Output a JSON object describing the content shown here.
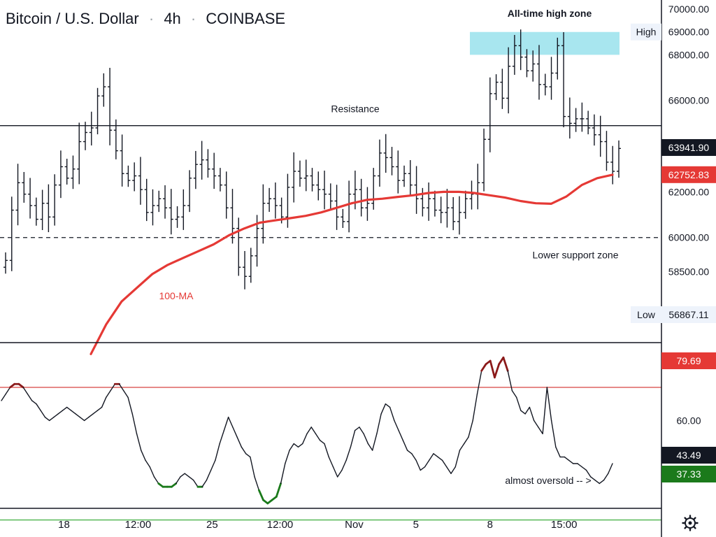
{
  "header": {
    "pair": "Bitcoin / U.S. Dollar",
    "interval": "4h",
    "exchange": "COINBASE",
    "separator": "·"
  },
  "chart_data": [
    {
      "type": "line",
      "title": "Bitcoin / U.S. Dollar · 4h · COINBASE",
      "ylim": [
        55400,
        70400
      ],
      "y_ticks": [
        "70000.00",
        "69000.00",
        "68000.00",
        "66000.00",
        "62000.00",
        "60000.00",
        "58500.00"
      ],
      "y_tick_values": [
        70000,
        69000,
        68000,
        66000,
        62000,
        60000,
        58500
      ],
      "x_labels": [
        "18",
        "12:00",
        "25",
        "12:00",
        "Nov",
        "5",
        "8",
        "15:00"
      ],
      "x_label_positions": [
        0.09,
        0.21,
        0.33,
        0.44,
        0.56,
        0.66,
        0.78,
        0.9
      ],
      "price_series": [
        59000,
        61200,
        62400,
        61900,
        61400,
        60800,
        61500,
        60900,
        62300,
        63100,
        62600,
        63000,
        64200,
        64600,
        64800,
        66200,
        66600,
        64700,
        63800,
        62800,
        62500,
        62700,
        62100,
        61100,
        61400,
        61700,
        61300,
        60800,
        60900,
        61400,
        62600,
        63200,
        63400,
        63000,
        62700,
        62300,
        61300,
        60400,
        58700,
        58300,
        59200,
        60400,
        61500,
        61700,
        61400,
        60900,
        62200,
        62900,
        62600,
        62700,
        62300,
        62100,
        61900,
        61600,
        60900,
        60700,
        61900,
        62100,
        61300,
        61500,
        62700,
        63700,
        63500,
        63100,
        62500,
        62800,
        62300,
        61700,
        61300,
        61700,
        61200,
        61100,
        61300,
        60700,
        61100,
        61700,
        61900,
        62400,
        64300,
        66300,
        66800,
        66100,
        67500,
        68400,
        67900,
        67300,
        67600,
        66700,
        66600,
        67200,
        68400,
        65300,
        65000,
        65200,
        65200,
        64800,
        64500,
        64200,
        63300,
        62900,
        63900
      ],
      "ma_series": [
        54900,
        56200,
        57200,
        57800,
        58400,
        58800,
        59100,
        59400,
        59700,
        60100,
        60400,
        60650,
        60750,
        60850,
        60950,
        61100,
        61300,
        61500,
        61650,
        61700,
        61780,
        61850,
        61950,
        62000,
        62000,
        61950,
        61850,
        61750,
        61600,
        61500,
        61480,
        61800,
        62300,
        62600,
        62750
      ],
      "horizontal_levels": {
        "resistance": 64900,
        "lower_support": 60000,
        "ath_zone_low": 68000,
        "ath_zone_high": 69000
      },
      "labels": {
        "ath_zone": "All-time high zone",
        "resistance": "Resistance",
        "lower_support": "Lower support zone",
        "ma": "100-MA"
      },
      "badges": {
        "high_label": "High",
        "high_value": "69000.00",
        "last_price": "63941.90",
        "ma_value": "62752.83",
        "low_label": "Low",
        "low_value": "56867.11"
      },
      "colors": {
        "ma": "#e53935",
        "ath_zone": "#a8e6ef",
        "badge_dark": "#131722",
        "badge_red": "#e53935",
        "badge_light": "#eef3fb"
      }
    },
    {
      "type": "line",
      "title": "",
      "ylim": [
        33.5,
        83.5
      ],
      "y_ticks": [
        "60.00"
      ],
      "y_tick_values": [
        60
      ],
      "levels": {
        "overbought": 70,
        "oversold": 30
      },
      "series": [
        66,
        68,
        70,
        71,
        71,
        70,
        68,
        66,
        65,
        63,
        61,
        60,
        61,
        62,
        63,
        64,
        63,
        62,
        61,
        60,
        61,
        62,
        63,
        64,
        67,
        69,
        71,
        71,
        69,
        67,
        62,
        56,
        51,
        48,
        46,
        43,
        41,
        40,
        40,
        40,
        41,
        43,
        44,
        43,
        42,
        40,
        40,
        42,
        45,
        48,
        53,
        57,
        61,
        58,
        55,
        52,
        50,
        49,
        43,
        39,
        36,
        35,
        36,
        37,
        41,
        47,
        51,
        53,
        52,
        53,
        56,
        58,
        56,
        54,
        53,
        49,
        46,
        43,
        45,
        48,
        52,
        57,
        58,
        56,
        53,
        51,
        56,
        62,
        65,
        64,
        60,
        57,
        54,
        51,
        50,
        48,
        45,
        46,
        48,
        50,
        49,
        48,
        46,
        44,
        46,
        51,
        53,
        55,
        60,
        68,
        75,
        77,
        78,
        73,
        77,
        79,
        75,
        69,
        67,
        63,
        62,
        64,
        60,
        58,
        56,
        70,
        60,
        52,
        49,
        49,
        48,
        47,
        47,
        46,
        45,
        43,
        42,
        41,
        42,
        44,
        47
      ],
      "labels": {
        "note": "almost oversold -- >"
      },
      "badges": {
        "overbought_value": "79.69",
        "current_value": "43.49",
        "oversold_value": "37.33"
      },
      "colors": {
        "line": "#131722",
        "overbought_segment": "#8b1a1a",
        "oversold_segment": "#1b7a1b",
        "overbought_line": "#d64541",
        "oversold_line": "#3fae3f",
        "badge_red": "#e53935",
        "badge_green": "#1b7a1b",
        "badge_dark": "#131722"
      }
    }
  ],
  "footer": {
    "settings_icon": "gear-icon"
  }
}
